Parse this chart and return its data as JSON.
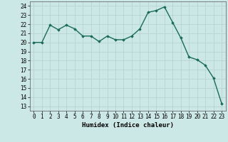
{
  "x": [
    0,
    1,
    2,
    3,
    4,
    5,
    6,
    7,
    8,
    9,
    10,
    11,
    12,
    13,
    14,
    15,
    16,
    17,
    18,
    19,
    20,
    21,
    22,
    23
  ],
  "y": [
    20.0,
    20.0,
    21.9,
    21.4,
    21.9,
    21.5,
    20.7,
    20.7,
    20.1,
    20.7,
    20.3,
    20.3,
    20.7,
    21.5,
    23.3,
    23.5,
    23.9,
    22.2,
    20.5,
    18.4,
    18.1,
    17.5,
    16.1,
    13.3
  ],
  "line_color": "#1a6b5a",
  "marker": "D",
  "marker_size": 1.8,
  "linewidth": 1.0,
  "xlabel": "Humidex (Indice chaleur)",
  "xlabel_fontsize": 6.5,
  "tick_fontsize": 5.5,
  "ylim_min": 12.5,
  "ylim_max": 24.5,
  "xlim_min": -0.5,
  "xlim_max": 23.5,
  "yticks": [
    13,
    14,
    15,
    16,
    17,
    18,
    19,
    20,
    21,
    22,
    23,
    24
  ],
  "xticks": [
    0,
    1,
    2,
    3,
    4,
    5,
    6,
    7,
    8,
    9,
    10,
    11,
    12,
    13,
    14,
    15,
    16,
    17,
    18,
    19,
    20,
    21,
    22,
    23
  ],
  "background_color": "#cce8e6",
  "grid_color": "#b8d4d2"
}
